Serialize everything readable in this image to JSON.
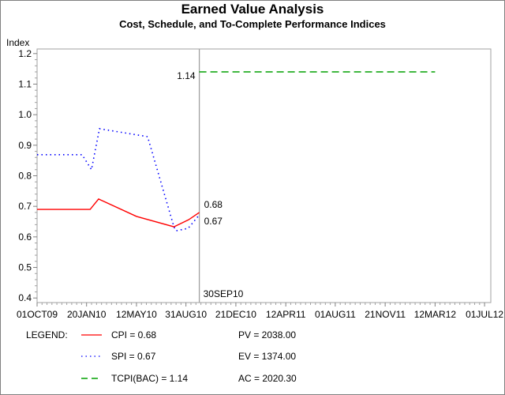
{
  "chart_data": {
    "type": "line",
    "title": "Earned Value Analysis",
    "subtitle": "Cost, Schedule, and To-Complete Performance Indices",
    "ylabel": "Index",
    "xlabel": "",
    "xlim": [
      "01OCT09",
      "15JUL12"
    ],
    "ylim": [
      0.385,
      1.215
    ],
    "yticks": [
      "0.4",
      "0.5",
      "0.6",
      "0.7",
      "0.8",
      "0.9",
      "1.0",
      "1.1",
      "1.2"
    ],
    "xticks": [
      "01OCT09",
      "20JAN10",
      "12MAY10",
      "31AUG10",
      "21DEC10",
      "12APR11",
      "01AUG11",
      "21NOV11",
      "12MAR12",
      "01JUL12"
    ],
    "grid": false,
    "reference_line": {
      "date": "30SEP10",
      "label": "30SEP10",
      "color": "#a0a0a0"
    },
    "series": [
      {
        "name": "CPI",
        "color": "#ff0000",
        "style": "solid",
        "x": [
          "01OCT09",
          "28JAN10",
          "16FEB10",
          "12MAY10",
          "04AUG10",
          "06SEP10",
          "30SEP10"
        ],
        "y": [
          0.69,
          0.69,
          0.724,
          0.667,
          0.633,
          0.656,
          0.68
        ],
        "end_label": "0.68"
      },
      {
        "name": "SPI",
        "color": "#0000ff",
        "style": "dotted",
        "x": [
          "01OCT09",
          "10JAN10",
          "31JAN10",
          "18FEB10",
          "06JUN10",
          "04AUG10",
          "09AUG10",
          "05SEP10",
          "30SEP10"
        ],
        "y": [
          0.869,
          0.869,
          0.82,
          0.954,
          0.928,
          0.633,
          0.62,
          0.628,
          0.672
        ],
        "end_label": "0.67"
      },
      {
        "name": "TCPI(BAC)",
        "color": "#00a000",
        "style": "dashed",
        "x": [
          "30SEP10",
          "12MAR12"
        ],
        "y": [
          1.14,
          1.14
        ],
        "start_label": "1.14"
      }
    ]
  },
  "legend": {
    "title": "LEGEND:",
    "entries": [
      "CPI = 0.68",
      "SPI = 0.67",
      "TCPI(BAC) = 1.14"
    ],
    "values": [
      "PV = 2038.00",
      "EV = 1374.00",
      "AC = 2020.30"
    ]
  }
}
